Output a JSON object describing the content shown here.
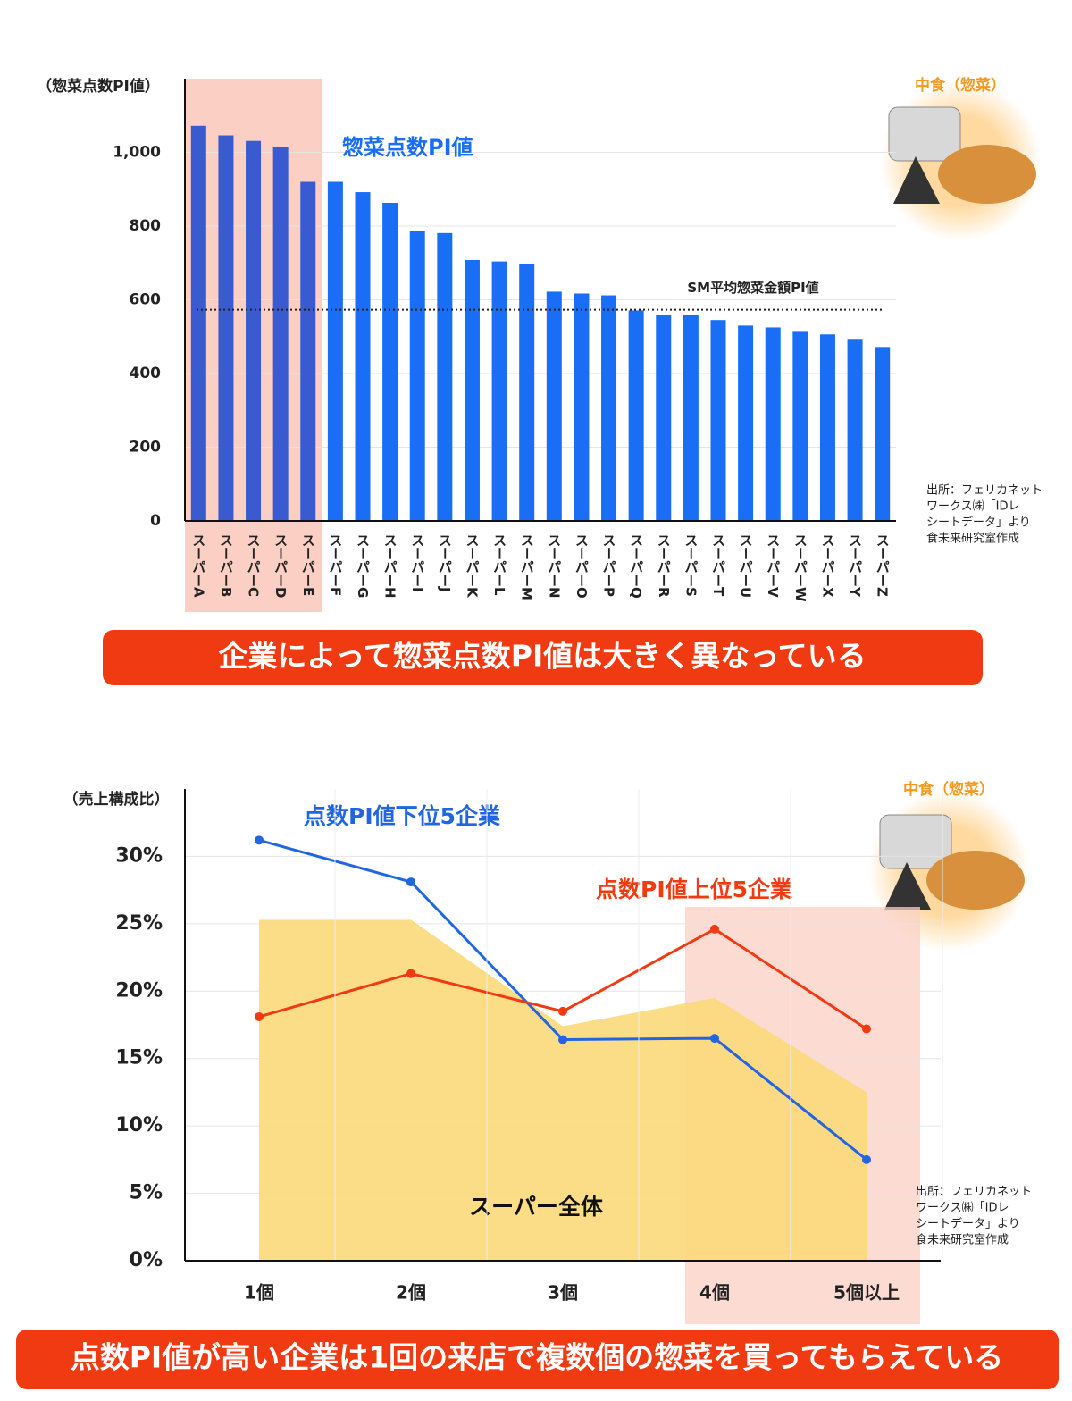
{
  "chart_data": [
    {
      "type": "bar",
      "y_label": "（惣菜点数PI値）",
      "series_label": "惣菜点数PI値",
      "badge": "中食（惣菜）",
      "categories": [
        "スーパーA",
        "スーパーB",
        "スーパーC",
        "スーパーD",
        "スーパーE",
        "スーパーF",
        "スーパーG",
        "スーパーH",
        "スーパーI",
        "スーパーJ",
        "スーパーK",
        "スーパーL",
        "スーパーM",
        "スーパーN",
        "スーパーO",
        "スーパーP",
        "スーパーQ",
        "スーパーR",
        "スーパーS",
        "スーパーT",
        "スーパーU",
        "スーパーV",
        "スーパーW",
        "スーパーX",
        "スーパーY",
        "スーパーZ"
      ],
      "values": [
        1072,
        1046,
        1031,
        1014,
        920,
        920,
        892,
        863,
        786,
        781,
        708,
        704,
        696,
        622,
        617,
        612,
        571,
        559,
        559,
        545,
        530,
        525,
        513,
        506,
        494,
        472
      ],
      "colors": [
        "#3a5bd0",
        "#3a5bd0",
        "#3a5bd0",
        "#3a5bd0",
        "#3a5bd0",
        "#1a6ef5",
        "#1a6ef5",
        "#1a6ef5",
        "#1a6ef5",
        "#1a6ef5",
        "#1a6ef5",
        "#1a6ef5",
        "#1a6ef5",
        "#1a6ef5",
        "#1a6ef5",
        "#1a6ef5",
        "#1a6ef5",
        "#1a6ef5",
        "#1a6ef5",
        "#1a6ef5",
        "#1a6ef5",
        "#1a6ef5",
        "#1a6ef5",
        "#1a6ef5",
        "#1a6ef5",
        "#1a6ef5"
      ],
      "reference_line": {
        "label": "SM平均惣菜金額PI値",
        "value": 573
      },
      "ylim": [
        0,
        1200
      ],
      "yticks": [
        0,
        200,
        400,
        600,
        800,
        {
          "value": 1000,
          "label": "1,000"
        }
      ],
      "grid": true,
      "source": [
        "出所：フェリカネット",
        "ワークス㈱「IDレ",
        "シートデータ」より",
        "食未来研究室作成"
      ],
      "caption": "企業によって惣菜点数PI値は大きく異なっている"
    },
    {
      "type": "line",
      "y_label": "（売上構成比）",
      "badge": "中食（惣菜）",
      "categories": [
        "1個",
        "2個",
        "3個",
        "4個",
        "5個以上"
      ],
      "series": [
        {
          "name": "点数PI値下位5企業",
          "color": "#2166e0",
          "values": [
            31.2,
            28.1,
            16.4,
            16.5,
            7.5
          ]
        },
        {
          "name": "点数PI値上位5企業",
          "color": "#f03a12",
          "values": [
            18.1,
            21.3,
            18.5,
            24.6,
            17.2
          ]
        },
        {
          "name": "スーパー全体",
          "color": "#fcd97a",
          "type": "area",
          "values": [
            25.3,
            25.3,
            17.4,
            19.5,
            12.5
          ]
        }
      ],
      "ylim": [
        0,
        35
      ],
      "yticks": [
        {
          "value": 0,
          "label": "0%"
        },
        {
          "value": 5,
          "label": "5%"
        },
        {
          "value": 10,
          "label": "10%"
        },
        {
          "value": 15,
          "label": "15%"
        },
        {
          "value": 20,
          "label": "20%"
        },
        {
          "value": 25,
          "label": "25%"
        },
        {
          "value": 30,
          "label": "30%"
        }
      ],
      "grid": true,
      "source": [
        "出所：フェリカネット",
        "ワークス㈱「IDレ",
        "シートデータ」より",
        "食未来研究室作成"
      ],
      "caption": "点数PI値が高い企業は1回の来店で複数個の惣菜を買ってもらえている"
    }
  ]
}
